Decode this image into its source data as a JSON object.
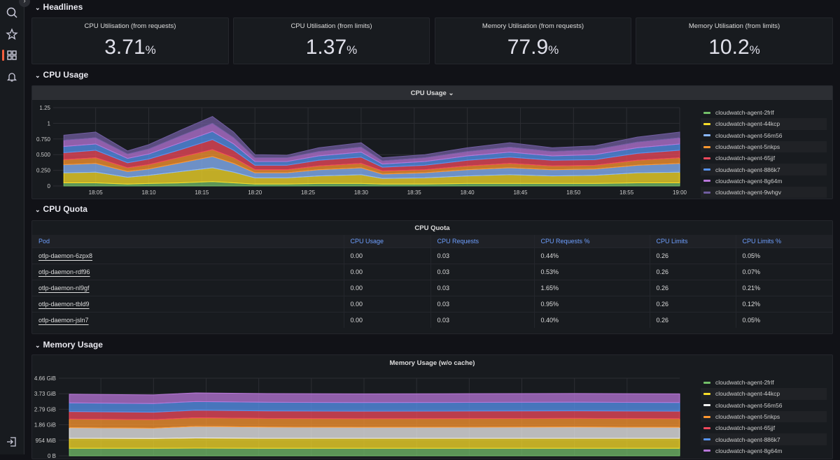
{
  "sidebar": {
    "items": [
      {
        "icon": "search-icon"
      },
      {
        "icon": "star-icon"
      },
      {
        "icon": "dashboards-icon",
        "active": true
      },
      {
        "icon": "bell-icon"
      },
      {
        "icon": "sign-in-icon"
      }
    ],
    "active_color": "#f55f3e"
  },
  "rows": {
    "headlines": "Headlines",
    "cpu_usage": "CPU Usage",
    "cpu_quota": "CPU Quota",
    "memory_usage": "Memory Usage"
  },
  "stats": [
    {
      "title": "CPU Utilisation (from requests)",
      "value": "3.71",
      "unit": "%"
    },
    {
      "title": "CPU Utilisation (from limits)",
      "value": "1.37",
      "unit": "%"
    },
    {
      "title": "Memory Utilisation (from requests)",
      "value": "77.9",
      "unit": "%"
    },
    {
      "title": "Memory Utilisation (from limits)",
      "value": "10.2",
      "unit": "%"
    }
  ],
  "cpu_panel": {
    "title": "CPU Usage",
    "menu_icon": "chevron-down-icon"
  },
  "quota_panel": {
    "title": "CPU Quota",
    "columns": [
      "Pod",
      "CPU Usage",
      "CPU Requests",
      "CPU Requests %",
      "CPU Limits",
      "CPU Limits %"
    ],
    "rows": [
      [
        "otlp-daemon-6zpx8",
        "0.00",
        "0.03",
        "0.44%",
        "0.26",
        "0.05%"
      ],
      [
        "otlp-daemon-rdf96",
        "0.00",
        "0.03",
        "0.53%",
        "0.26",
        "0.07%"
      ],
      [
        "otlp-daemon-nl9gf",
        "0.00",
        "0.03",
        "1.65%",
        "0.26",
        "0.21%"
      ],
      [
        "otlp-daemon-tbld9",
        "0.00",
        "0.03",
        "0.95%",
        "0.26",
        "0.12%"
      ],
      [
        "otlp-daemon-jsln7",
        "0.00",
        "0.03",
        "0.40%",
        "0.26",
        "0.05%"
      ]
    ]
  },
  "memory_panel": {
    "title": "Memory Usage (w/o cache)"
  },
  "chart_data": [
    {
      "type": "area",
      "stacked": true,
      "title": "CPU Usage",
      "ylim": [
        0,
        1.25
      ],
      "yticks": [
        "0",
        "0.250",
        "0.500",
        "0.750",
        "1",
        "1.25"
      ],
      "xticks": [
        "18:05",
        "18:10",
        "18:15",
        "18:20",
        "18:25",
        "18:30",
        "18:35",
        "18:40",
        "18:45",
        "18:50",
        "18:55",
        "19:00"
      ],
      "grid": true,
      "legend": "right",
      "x": [
        "18:02",
        "18:05",
        "18:08",
        "18:10",
        "18:13",
        "18:16",
        "18:18",
        "18:20",
        "18:23",
        "18:26",
        "18:30",
        "18:32",
        "18:36",
        "18:40",
        "18:44",
        "18:48",
        "18:52",
        "18:56",
        "19:00"
      ],
      "series": [
        {
          "name": "cloudwatch-agent-2frlf",
          "color": "#73bf69",
          "values": [
            0.05,
            0.05,
            0.03,
            0.04,
            0.05,
            0.07,
            0.05,
            0.03,
            0.03,
            0.04,
            0.04,
            0.03,
            0.03,
            0.04,
            0.04,
            0.04,
            0.04,
            0.05,
            0.05
          ]
        },
        {
          "name": "cloudwatch-agent-44kcp",
          "color": "#fade2a",
          "values": [
            0.16,
            0.17,
            0.11,
            0.13,
            0.18,
            0.22,
            0.17,
            0.1,
            0.1,
            0.12,
            0.14,
            0.09,
            0.1,
            0.12,
            0.14,
            0.12,
            0.13,
            0.16,
            0.17
          ]
        },
        {
          "name": "cloudwatch-agent-56m56",
          "color": "#8ab8ff",
          "values": [
            0.13,
            0.14,
            0.09,
            0.1,
            0.14,
            0.18,
            0.14,
            0.08,
            0.08,
            0.1,
            0.11,
            0.07,
            0.08,
            0.1,
            0.11,
            0.1,
            0.1,
            0.12,
            0.14
          ]
        },
        {
          "name": "cloudwatch-agent-5nkps",
          "color": "#ff9830",
          "values": [
            0.08,
            0.09,
            0.06,
            0.07,
            0.09,
            0.11,
            0.09,
            0.05,
            0.05,
            0.06,
            0.07,
            0.05,
            0.05,
            0.06,
            0.07,
            0.06,
            0.06,
            0.08,
            0.09
          ]
        },
        {
          "name": "cloudwatch-agent-65jjf",
          "color": "#f2495c",
          "values": [
            0.11,
            0.12,
            0.08,
            0.09,
            0.12,
            0.16,
            0.12,
            0.07,
            0.07,
            0.09,
            0.1,
            0.06,
            0.07,
            0.09,
            0.1,
            0.09,
            0.09,
            0.11,
            0.12
          ]
        },
        {
          "name": "cloudwatch-agent-886k7",
          "color": "#5794f2",
          "values": [
            0.1,
            0.1,
            0.07,
            0.08,
            0.11,
            0.13,
            0.1,
            0.06,
            0.06,
            0.07,
            0.08,
            0.05,
            0.06,
            0.07,
            0.08,
            0.07,
            0.08,
            0.09,
            0.1
          ]
        },
        {
          "name": "cloudwatch-agent-8g64m",
          "color": "#b877d9",
          "values": [
            0.1,
            0.1,
            0.07,
            0.08,
            0.11,
            0.13,
            0.1,
            0.06,
            0.06,
            0.07,
            0.08,
            0.05,
            0.06,
            0.07,
            0.08,
            0.07,
            0.08,
            0.09,
            0.1
          ]
        },
        {
          "name": "cloudwatch-agent-9whgv",
          "color": "#705da0",
          "values": [
            0.08,
            0.09,
            0.05,
            0.07,
            0.09,
            0.11,
            0.09,
            0.05,
            0.04,
            0.06,
            0.07,
            0.05,
            0.05,
            0.06,
            0.07,
            0.06,
            0.06,
            0.08,
            0.09
          ]
        }
      ]
    },
    {
      "type": "area",
      "stacked": true,
      "title": "Memory Usage (w/o cache)",
      "unit": "GiB",
      "ylim": [
        0,
        4.66
      ],
      "yticks": [
        "0 B",
        "954 MiB",
        "1.86 GiB",
        "2.79 GiB",
        "3.73 GiB",
        "4.66 GiB"
      ],
      "grid": true,
      "legend": "right",
      "x": [
        "18:02",
        "18:10",
        "18:14",
        "18:20",
        "18:30",
        "18:40",
        "18:50",
        "19:00"
      ],
      "series": [
        {
          "name": "cloudwatch-agent-2frlf",
          "color": "#73bf69",
          "values": [
            0.45,
            0.45,
            0.46,
            0.45,
            0.45,
            0.45,
            0.45,
            0.45
          ]
        },
        {
          "name": "cloudwatch-agent-44kcp",
          "color": "#fade2a",
          "values": [
            0.6,
            0.59,
            0.61,
            0.6,
            0.6,
            0.6,
            0.6,
            0.6
          ]
        },
        {
          "name": "cloudwatch-agent-56m56",
          "color": "#f0f0f0",
          "values": [
            0.64,
            0.62,
            0.7,
            0.68,
            0.66,
            0.67,
            0.68,
            0.66
          ]
        },
        {
          "name": "cloudwatch-agent-5nkps",
          "color": "#ff9830",
          "values": [
            0.52,
            0.51,
            0.52,
            0.52,
            0.52,
            0.52,
            0.52,
            0.52
          ]
        },
        {
          "name": "cloudwatch-agent-65jjf",
          "color": "#f2495c",
          "values": [
            0.45,
            0.45,
            0.45,
            0.45,
            0.45,
            0.45,
            0.45,
            0.45
          ]
        },
        {
          "name": "cloudwatch-agent-886k7",
          "color": "#5794f2",
          "values": [
            0.52,
            0.52,
            0.52,
            0.52,
            0.52,
            0.52,
            0.52,
            0.52
          ]
        },
        {
          "name": "cloudwatch-agent-8g64m",
          "color": "#b877d9",
          "values": [
            0.52,
            0.52,
            0.52,
            0.52,
            0.52,
            0.52,
            0.52,
            0.52
          ]
        }
      ]
    }
  ]
}
